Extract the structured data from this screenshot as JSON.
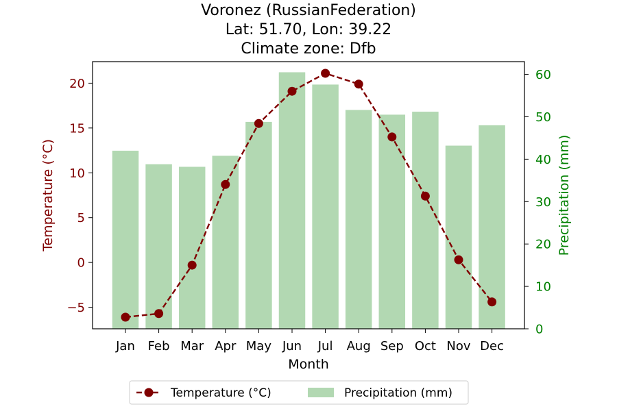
{
  "chart_data": {
    "type": "bar",
    "title_lines": [
      "Voronez (RussianFederation)",
      "Lat: 51.70, Lon: 39.22",
      "Climate zone: Dfb"
    ],
    "xlabel": "Month",
    "categories": [
      "Jan",
      "Feb",
      "Mar",
      "Apr",
      "May",
      "Jun",
      "Jul",
      "Aug",
      "Sep",
      "Oct",
      "Nov",
      "Dec"
    ],
    "left_axis": {
      "label": "Temperature (°C)",
      "ylim": [
        -7.4,
        22.4
      ],
      "ticks": [
        -5,
        0,
        5,
        10,
        15,
        20
      ],
      "tick_labels": [
        "−5",
        "0",
        "5",
        "10",
        "15",
        "20"
      ],
      "color": "#800000"
    },
    "right_axis": {
      "label": "Precipitation (mm)",
      "ylim": [
        0,
        63
      ],
      "ticks": [
        0,
        10,
        20,
        30,
        40,
        50,
        60
      ],
      "tick_labels": [
        "0",
        "10",
        "20",
        "30",
        "40",
        "50",
        "60"
      ],
      "color": "#008000"
    },
    "series": [
      {
        "name": "Temperature (°C)",
        "type": "line",
        "axis": "left",
        "style": "dashed with circle markers",
        "color": "#800000",
        "values": [
          -6.1,
          -5.7,
          -0.3,
          8.7,
          15.5,
          19.1,
          21.1,
          19.9,
          14.0,
          7.4,
          0.3,
          -4.4
        ]
      },
      {
        "name": "Precipitation (mm)",
        "type": "bar",
        "axis": "right",
        "color": "#b2d8b2",
        "values": [
          42.0,
          38.8,
          38.2,
          40.8,
          48.8,
          60.5,
          57.6,
          51.6,
          50.5,
          51.2,
          43.2,
          48.0
        ]
      }
    ],
    "legend": {
      "placement": "bottom-center, below plot",
      "columns": 2
    },
    "grid": false
  }
}
